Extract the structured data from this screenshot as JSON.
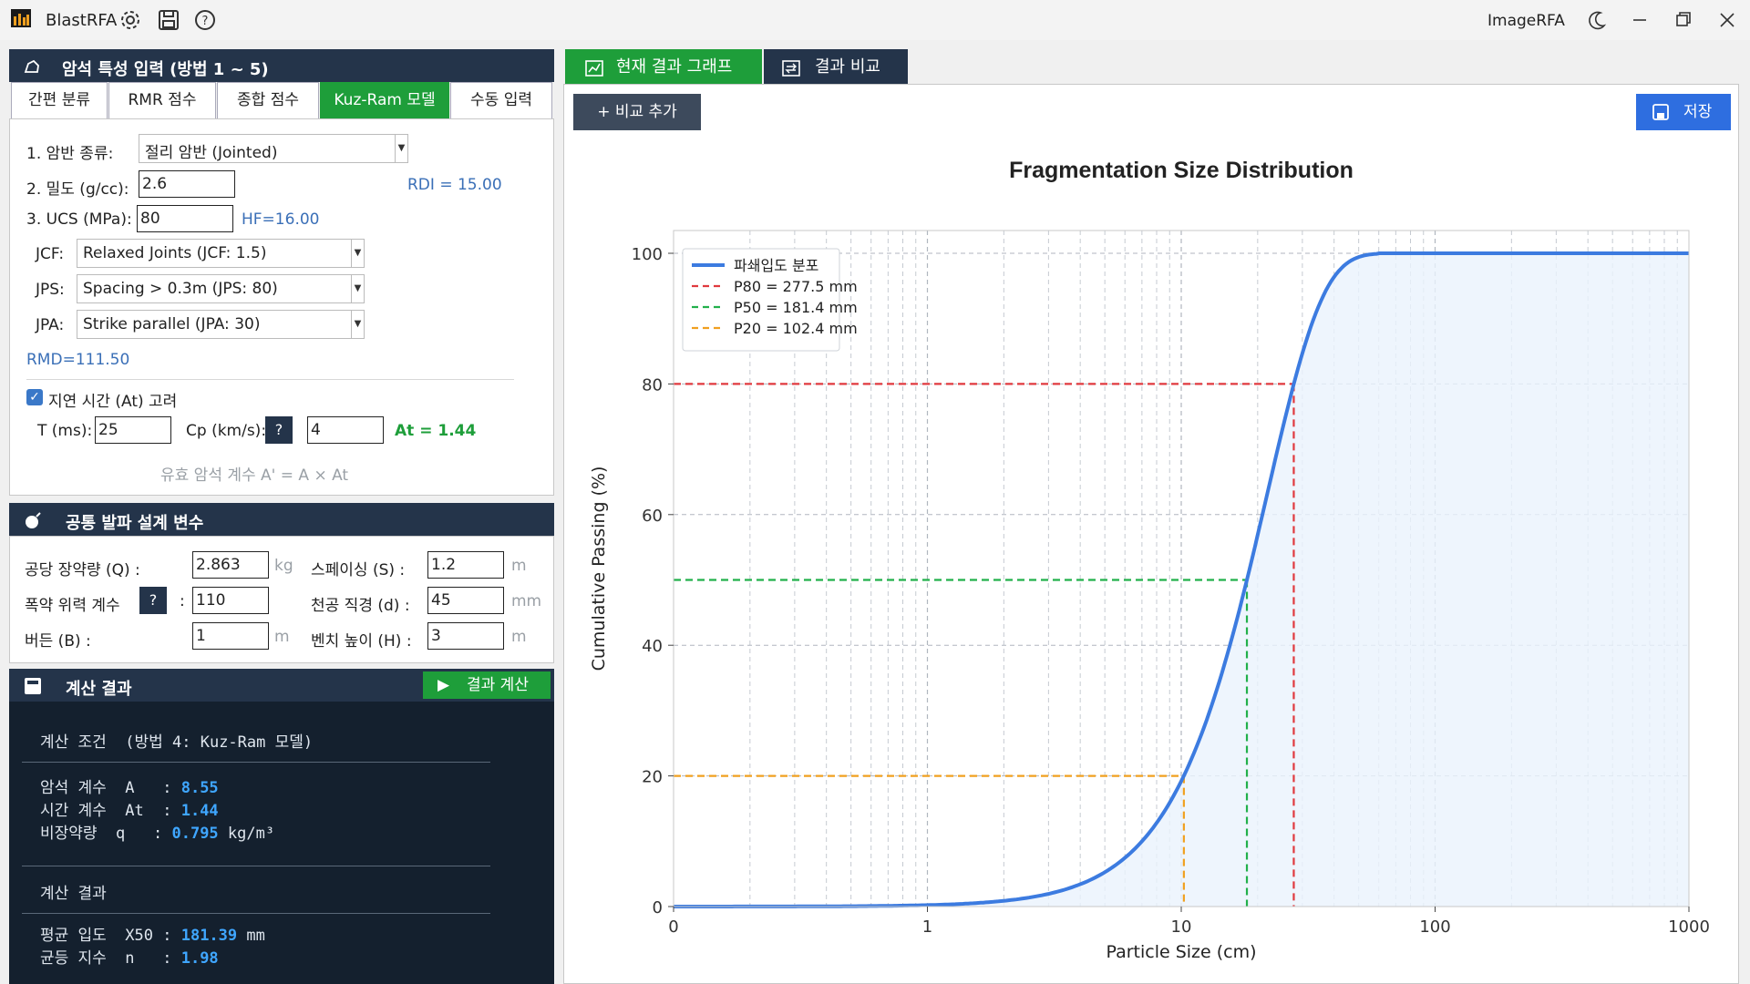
{
  "app": {
    "title": "BlastRFA",
    "right_label": "ImageRFA"
  },
  "rock": {
    "header": "암석 특성 입력 (방법 1 ~ 5)",
    "tabs": [
      "간편 분류",
      "RMR 점수",
      "종합 점수",
      "Kuz-Ram 모델",
      "수동 입력"
    ],
    "active_tab": 3,
    "rock_type_label": "1. 암반 종류:",
    "rock_type_value": "절리 암반 (Jointed)",
    "density_label": "2. 밀도 (g/cc):",
    "density_value": "2.6",
    "rdi": "RDI = 15.00",
    "ucs_label": "3. UCS (MPa):",
    "ucs_value": "80",
    "hf": "HF=16.00",
    "jcf_label": "JCF:",
    "jcf_value": "Relaxed Joints (JCF: 1.5)",
    "jps_label": "JPS:",
    "jps_value": "Spacing > 0.3m (JPS: 80)",
    "jpa_label": "JPA:",
    "jpa_value": "Strike parallel (JPA: 30)",
    "rmd": "RMD=111.50",
    "delay_label": "지연 시간 (At) 고려",
    "delay_checked": true,
    "t_label": "T (ms):",
    "t_value": "25",
    "cp_label": "Cp (km/s):",
    "cp_help": "?",
    "cp_value": "4",
    "at_result": "At = 1.44",
    "formula_note": "유효 암석 계수  A' = A × At"
  },
  "blast": {
    "header": "공통 발파 설계 변수",
    "q_label": "공당 장약량 (Q)  :",
    "q_value": "2.863",
    "q_unit": "kg",
    "spacing_label": "스페이싱 (S)  :",
    "spacing_value": "1.2",
    "spacing_unit": "m",
    "power_label": "폭약 위력 계수",
    "power_help": "?",
    "power_colon": ":",
    "power_value": "110",
    "diameter_label": "천공 직경 (d)  :",
    "diameter_value": "45",
    "diameter_unit": "mm",
    "burden_label": "버든 (B)  :",
    "burden_value": "1",
    "burden_unit": "m",
    "bench_label": "벤치 높이 (H)  :",
    "bench_value": "3",
    "bench_unit": "m"
  },
  "calc": {
    "header": "계산 결과",
    "button": "결과 계산",
    "cond_title": "계산 조건  (방법 4: Kuz-Ram 모델)",
    "rows1": [
      {
        "label": "암석 계수",
        "sym": "A ",
        "value": "8.55",
        "unit": ""
      },
      {
        "label": "시간 계수",
        "sym": "At",
        "value": "1.44",
        "unit": ""
      },
      {
        "label": "비장약량 ",
        "sym": "q ",
        "value": "0.795",
        "unit": "kg/m³"
      }
    ],
    "result_title": "계산 결과",
    "rows2": [
      {
        "label": "평균 입도",
        "sym": "X50",
        "value": "181.39",
        "unit": "mm"
      },
      {
        "label": "균등 지수",
        "sym": "n  ",
        "value": "1.98",
        "unit": ""
      }
    ]
  },
  "right": {
    "tab_current": "현재 결과 그래프",
    "tab_compare": "결과 비교",
    "add_compare": "+  비교 추가",
    "save": "저장"
  },
  "chart_data": {
    "type": "line",
    "title": "Fragmentation Size Distribution",
    "xlabel": "Particle Size  (cm)",
    "ylabel": "Cumulative Passing  (%)",
    "x_scale": "log",
    "xticks": [
      "0",
      "1",
      "10",
      "100",
      "1000"
    ],
    "yticks": [
      "0",
      "20",
      "40",
      "60",
      "80",
      "100"
    ],
    "xlim": [
      0.1,
      1000
    ],
    "ylim": [
      0,
      100
    ],
    "grid": true,
    "legend_position": "top-left",
    "series": [
      {
        "name": "파쇄입도 분포",
        "color": "#3c7be0",
        "x50_cm": 18.139,
        "n": 1.98,
        "x_max_cm": 60
      }
    ],
    "markers": [
      {
        "name": "P80 = 277.5 mm",
        "x_cm": 27.75,
        "y": 80,
        "color": "#e0393e"
      },
      {
        "name": "P50 = 181.4 mm",
        "x_cm": 18.14,
        "y": 50,
        "color": "#22b04b"
      },
      {
        "name": "P20 = 102.4 mm",
        "x_cm": 10.24,
        "y": 20,
        "color": "#f0a020"
      }
    ]
  }
}
